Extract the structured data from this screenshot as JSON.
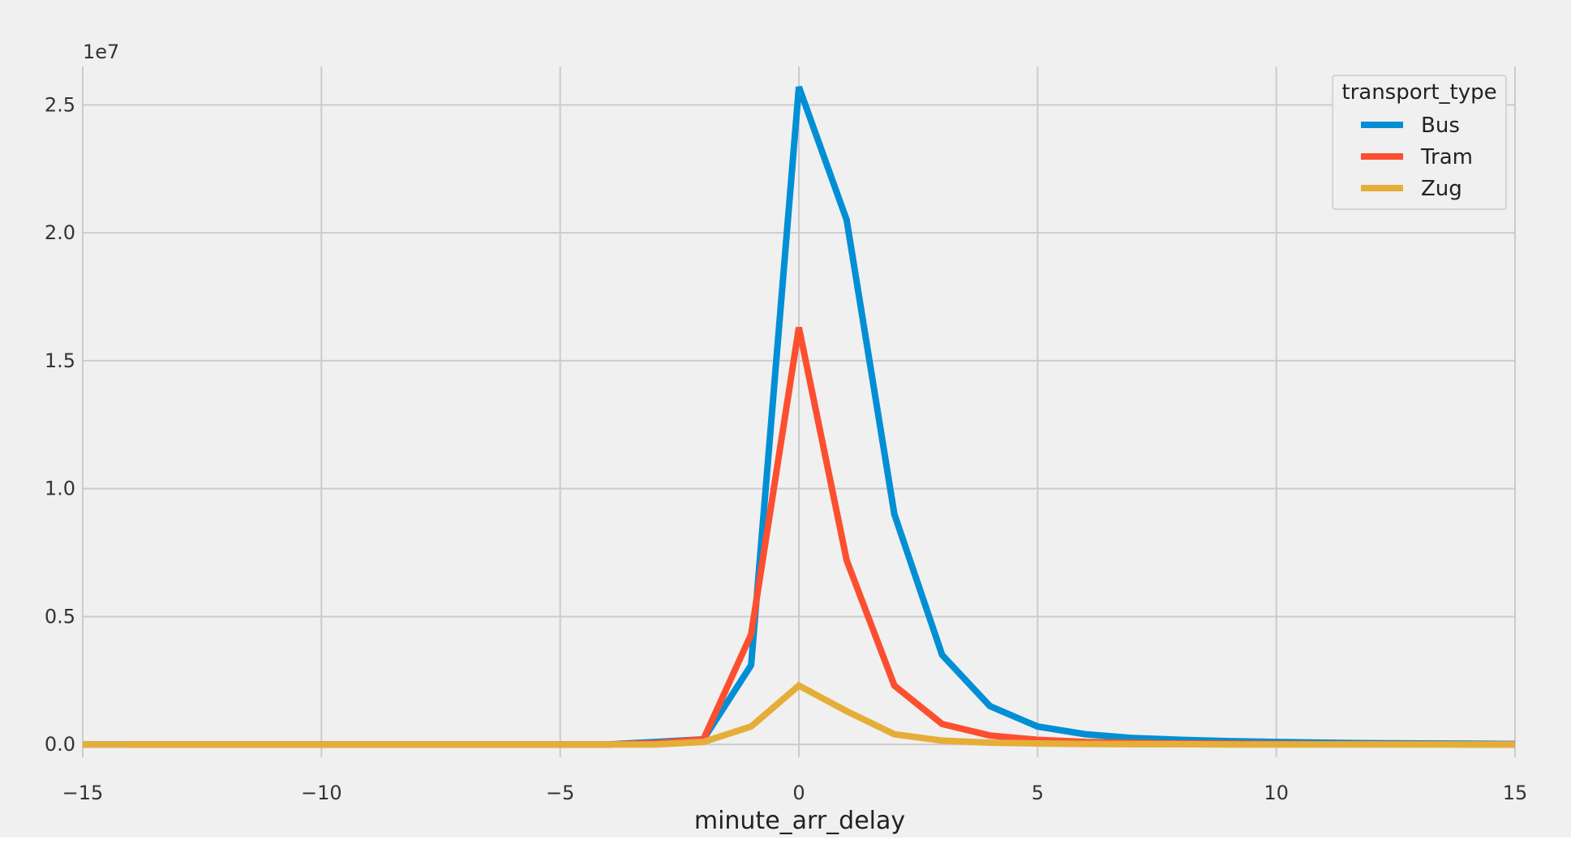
{
  "chart_data": {
    "type": "line",
    "xlabel": "minute_arr_delay",
    "ylabel": "",
    "y_offset_label": "1e7",
    "xlim": [
      -15,
      15
    ],
    "ylim": [
      -0.05,
      2.65
    ],
    "x_ticks": [
      -15,
      -10,
      -5,
      0,
      5,
      10,
      15
    ],
    "x_tick_labels": [
      "−15",
      "−10",
      "−5",
      "0",
      "5",
      "10",
      "15"
    ],
    "y_ticks": [
      0.0,
      0.5,
      1.0,
      1.5,
      2.0,
      2.5
    ],
    "y_tick_labels": [
      "0.0",
      "0.5",
      "1.0",
      "1.5",
      "2.0",
      "2.5"
    ],
    "grid": true,
    "legend": {
      "title": "transport_type",
      "placement": "top-right"
    },
    "colors": {
      "background": "#f0f0f0",
      "grid": "#cbcbcb"
    },
    "series": [
      {
        "name": "Bus",
        "color": "#008fd5",
        "points": [
          [
            -15,
            0
          ],
          [
            -14,
            0
          ],
          [
            -13,
            0
          ],
          [
            -12,
            0
          ],
          [
            -11,
            0
          ],
          [
            -10,
            0
          ],
          [
            -9,
            0
          ],
          [
            -8,
            0
          ],
          [
            -7,
            0
          ],
          [
            -6,
            0
          ],
          [
            -5,
            0
          ],
          [
            -4,
            0
          ],
          [
            -3,
            0.01
          ],
          [
            -2,
            0.02
          ],
          [
            -1,
            0.31
          ],
          [
            0,
            2.57
          ],
          [
            1,
            2.05
          ],
          [
            2,
            0.9
          ],
          [
            3,
            0.35
          ],
          [
            4,
            0.15
          ],
          [
            5,
            0.07
          ],
          [
            6,
            0.04
          ],
          [
            7,
            0.025
          ],
          [
            8,
            0.018
          ],
          [
            9,
            0.013
          ],
          [
            10,
            0.01
          ],
          [
            11,
            0.007
          ],
          [
            12,
            0.005
          ],
          [
            13,
            0.004
          ],
          [
            14,
            0.003
          ],
          [
            15,
            0.002
          ]
        ]
      },
      {
        "name": "Tram",
        "color": "#fc4f30",
        "points": [
          [
            -14,
            0
          ],
          [
            -13,
            0
          ],
          [
            -12,
            0
          ],
          [
            -11,
            0
          ],
          [
            -10,
            0
          ],
          [
            -9,
            0
          ],
          [
            -8,
            0
          ],
          [
            -7,
            0
          ],
          [
            -6,
            0
          ],
          [
            -5,
            0
          ],
          [
            -4,
            0
          ],
          [
            -3,
            0.005
          ],
          [
            -2,
            0.02
          ],
          [
            -1,
            0.43
          ],
          [
            0,
            1.63
          ],
          [
            1,
            0.72
          ],
          [
            2,
            0.23
          ],
          [
            3,
            0.08
          ],
          [
            4,
            0.035
          ],
          [
            5,
            0.018
          ],
          [
            6,
            0.01
          ],
          [
            7,
            0.006
          ],
          [
            8,
            0.004
          ],
          [
            9,
            0.003
          ],
          [
            10,
            0.002
          ],
          [
            11,
            0.001
          ],
          [
            12,
            0.001
          ],
          [
            13,
            0.001
          ],
          [
            14,
            0
          ],
          [
            15,
            0
          ]
        ]
      },
      {
        "name": "Zug",
        "color": "#e5ae38",
        "points": [
          [
            -15,
            0
          ],
          [
            -14,
            0
          ],
          [
            -13,
            0
          ],
          [
            -12,
            0
          ],
          [
            -11,
            0
          ],
          [
            -10,
            0
          ],
          [
            -9,
            0
          ],
          [
            -8,
            0
          ],
          [
            -7,
            0
          ],
          [
            -6,
            0
          ],
          [
            -5,
            0
          ],
          [
            -4,
            0
          ],
          [
            -3,
            0
          ],
          [
            -2,
            0.01
          ],
          [
            -1,
            0.07
          ],
          [
            0,
            0.23
          ],
          [
            1,
            0.13
          ],
          [
            2,
            0.04
          ],
          [
            3,
            0.015
          ],
          [
            4,
            0.007
          ],
          [
            5,
            0.004
          ],
          [
            6,
            0.002
          ],
          [
            7,
            0.001
          ],
          [
            8,
            0.001
          ],
          [
            9,
            0
          ],
          [
            10,
            0
          ],
          [
            11,
            0
          ],
          [
            12,
            0
          ],
          [
            13,
            0
          ],
          [
            14,
            0
          ],
          [
            15,
            0
          ]
        ]
      }
    ]
  }
}
